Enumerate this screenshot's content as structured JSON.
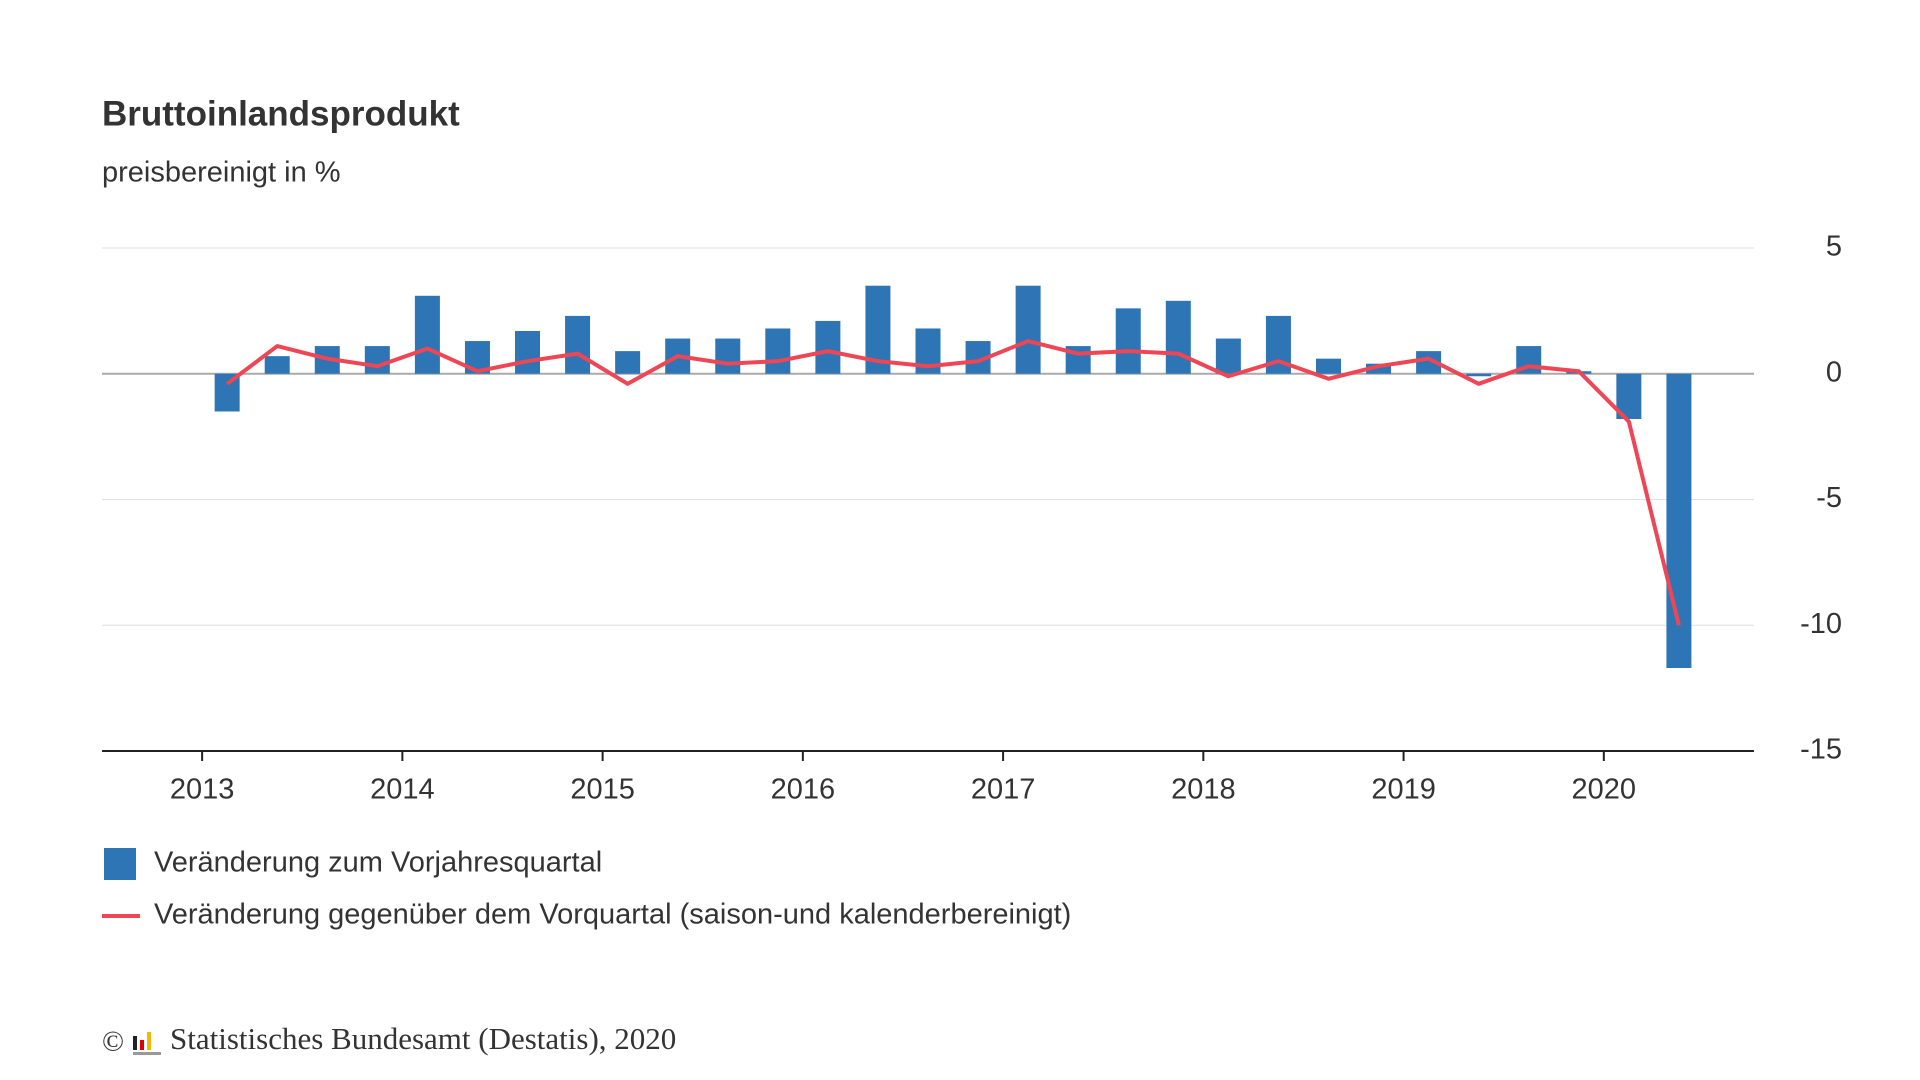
{
  "chart_data": {
    "type": "bar-line",
    "title": "Bruttoinlandsprodukt",
    "subtitle": "preisbereinigt in %",
    "x": [
      2013.125,
      2013.375,
      2013.625,
      2013.875,
      2014.125,
      2014.375,
      2014.625,
      2014.875,
      2015.125,
      2015.375,
      2015.625,
      2015.875,
      2016.125,
      2016.375,
      2016.625,
      2016.875,
      2017.125,
      2017.375,
      2017.625,
      2017.875,
      2018.125,
      2018.375,
      2018.625,
      2018.875,
      2019.125,
      2019.375,
      2019.625,
      2019.875,
      2020.125,
      2020.375
    ],
    "xlim": [
      2012.5,
      2020.75
    ],
    "xticks": [
      2013,
      2014,
      2015,
      2016,
      2017,
      2018,
      2019,
      2020
    ],
    "ylim": [
      -15,
      5
    ],
    "yticks": [
      5,
      0,
      -5,
      -10,
      -15
    ],
    "grid": true,
    "series": [
      {
        "name": "Veränderung zum Vorjahresquartal",
        "type": "bar",
        "color": "#2e75b6",
        "values": [
          -1.5,
          0.7,
          1.1,
          1.1,
          3.1,
          1.3,
          1.7,
          2.3,
          0.9,
          1.4,
          1.4,
          1.8,
          2.1,
          3.5,
          1.8,
          1.3,
          3.5,
          1.1,
          2.6,
          2.9,
          1.4,
          2.3,
          0.6,
          0.4,
          0.9,
          -0.1,
          1.1,
          0.1,
          -1.8,
          -11.7
        ]
      },
      {
        "name": "Veränderung gegenüber dem Vorquartal (saison-und kalenderbereinigt)",
        "type": "line",
        "color": "#ee4654",
        "values": [
          -0.4,
          1.1,
          0.6,
          0.3,
          1.0,
          0.1,
          0.5,
          0.8,
          -0.4,
          0.7,
          0.4,
          0.5,
          0.9,
          0.5,
          0.3,
          0.5,
          1.3,
          0.8,
          0.9,
          0.8,
          -0.1,
          0.5,
          -0.2,
          0.3,
          0.6,
          -0.4,
          0.3,
          0.1,
          -1.9,
          -10.0
        ]
      }
    ],
    "footer": {
      "symbol": "©",
      "text": "Statistisches Bundesamt (Destatis), 2020"
    }
  }
}
